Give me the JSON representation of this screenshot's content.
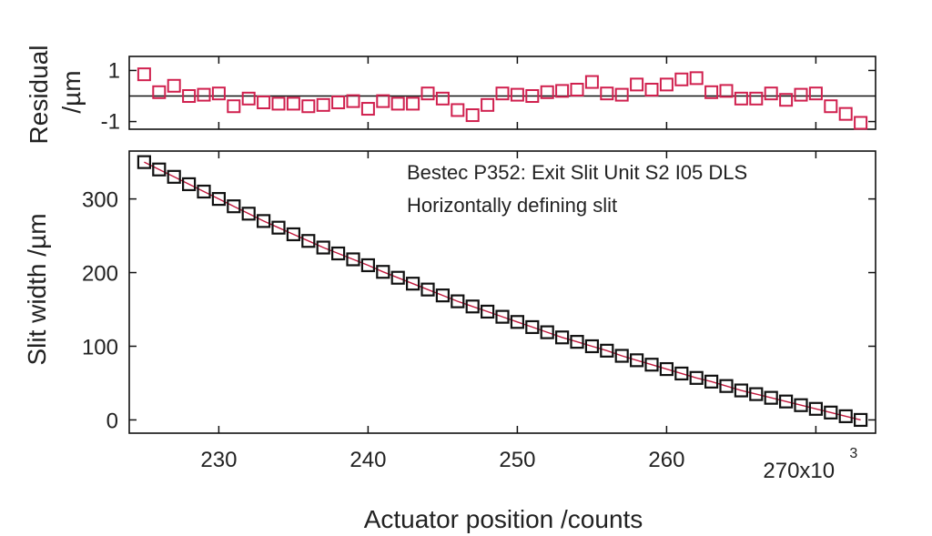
{
  "chart_data": [
    {
      "panel": "residual",
      "type": "scatter",
      "ylabel_lines": [
        "Residual",
        "/µm"
      ],
      "ylim": [
        -1.3,
        1.55
      ],
      "yticks": [
        1,
        -1
      ],
      "ytick_labels": [
        "1",
        "-1"
      ],
      "reference_line": 0,
      "marker_color": "#d0204e",
      "x": [
        225,
        226,
        227,
        228,
        229,
        230,
        231,
        232,
        233,
        234,
        235,
        236,
        237,
        238,
        239,
        240,
        241,
        242,
        243,
        244,
        245,
        246,
        247,
        248,
        249,
        250,
        251,
        252,
        253,
        254,
        255,
        256,
        257,
        258,
        259,
        260,
        261,
        262,
        263,
        264,
        265,
        266,
        267,
        268,
        269,
        270,
        271,
        272,
        273
      ],
      "y": [
        0.85,
        0.15,
        0.4,
        0.0,
        0.05,
        0.1,
        -0.4,
        -0.1,
        -0.25,
        -0.3,
        -0.3,
        -0.4,
        -0.35,
        -0.25,
        -0.2,
        -0.5,
        -0.2,
        -0.3,
        -0.3,
        0.1,
        -0.1,
        -0.55,
        -0.75,
        -0.35,
        0.1,
        0.05,
        0.0,
        0.15,
        0.2,
        0.25,
        0.55,
        0.1,
        0.05,
        0.45,
        0.25,
        0.45,
        0.65,
        0.7,
        0.15,
        0.2,
        -0.1,
        -0.1,
        0.1,
        -0.15,
        0.05,
        0.1,
        -0.4,
        -0.7,
        -1.05
      ]
    },
    {
      "panel": "main",
      "type": "scatter",
      "ylabel": "Slit width /µm",
      "xlabel": "Actuator position /counts",
      "xlim": [
        224,
        274
      ],
      "ylim": [
        -18,
        365
      ],
      "xticks": [
        230,
        240,
        250,
        260,
        270
      ],
      "xtick_labels": [
        "230",
        "240",
        "250",
        "260",
        "270x10"
      ],
      "x_exponent": "3",
      "yticks": [
        0,
        100,
        200,
        300
      ],
      "ytick_labels": [
        "0",
        "100",
        "200",
        "300"
      ],
      "marker_color": "#111111",
      "fit_color": "#c0183c",
      "annotation_lines": [
        "Bestec P352: Exit Slit Unit S2 I05 DLS",
        "Horizontally defining slit"
      ],
      "x": [
        225,
        226,
        227,
        228,
        229,
        230,
        231,
        232,
        233,
        234,
        235,
        236,
        237,
        238,
        239,
        240,
        241,
        242,
        243,
        244,
        245,
        246,
        247,
        248,
        249,
        250,
        251,
        252,
        253,
        254,
        255,
        256,
        257,
        258,
        259,
        260,
        261,
        262,
        263,
        264,
        265,
        266,
        267,
        268,
        269,
        270,
        271,
        272,
        273
      ],
      "y": [
        350,
        340,
        330,
        320,
        310,
        300,
        290,
        280,
        270,
        261,
        252,
        243,
        234,
        226,
        218,
        210,
        201,
        193,
        185,
        177,
        169,
        161,
        154,
        147,
        140,
        133,
        126,
        119,
        112,
        106,
        100,
        94,
        87,
        81,
        75,
        69,
        63,
        57,
        52,
        46,
        40,
        35,
        30,
        25,
        20,
        15,
        10,
        5,
        0
      ]
    }
  ]
}
